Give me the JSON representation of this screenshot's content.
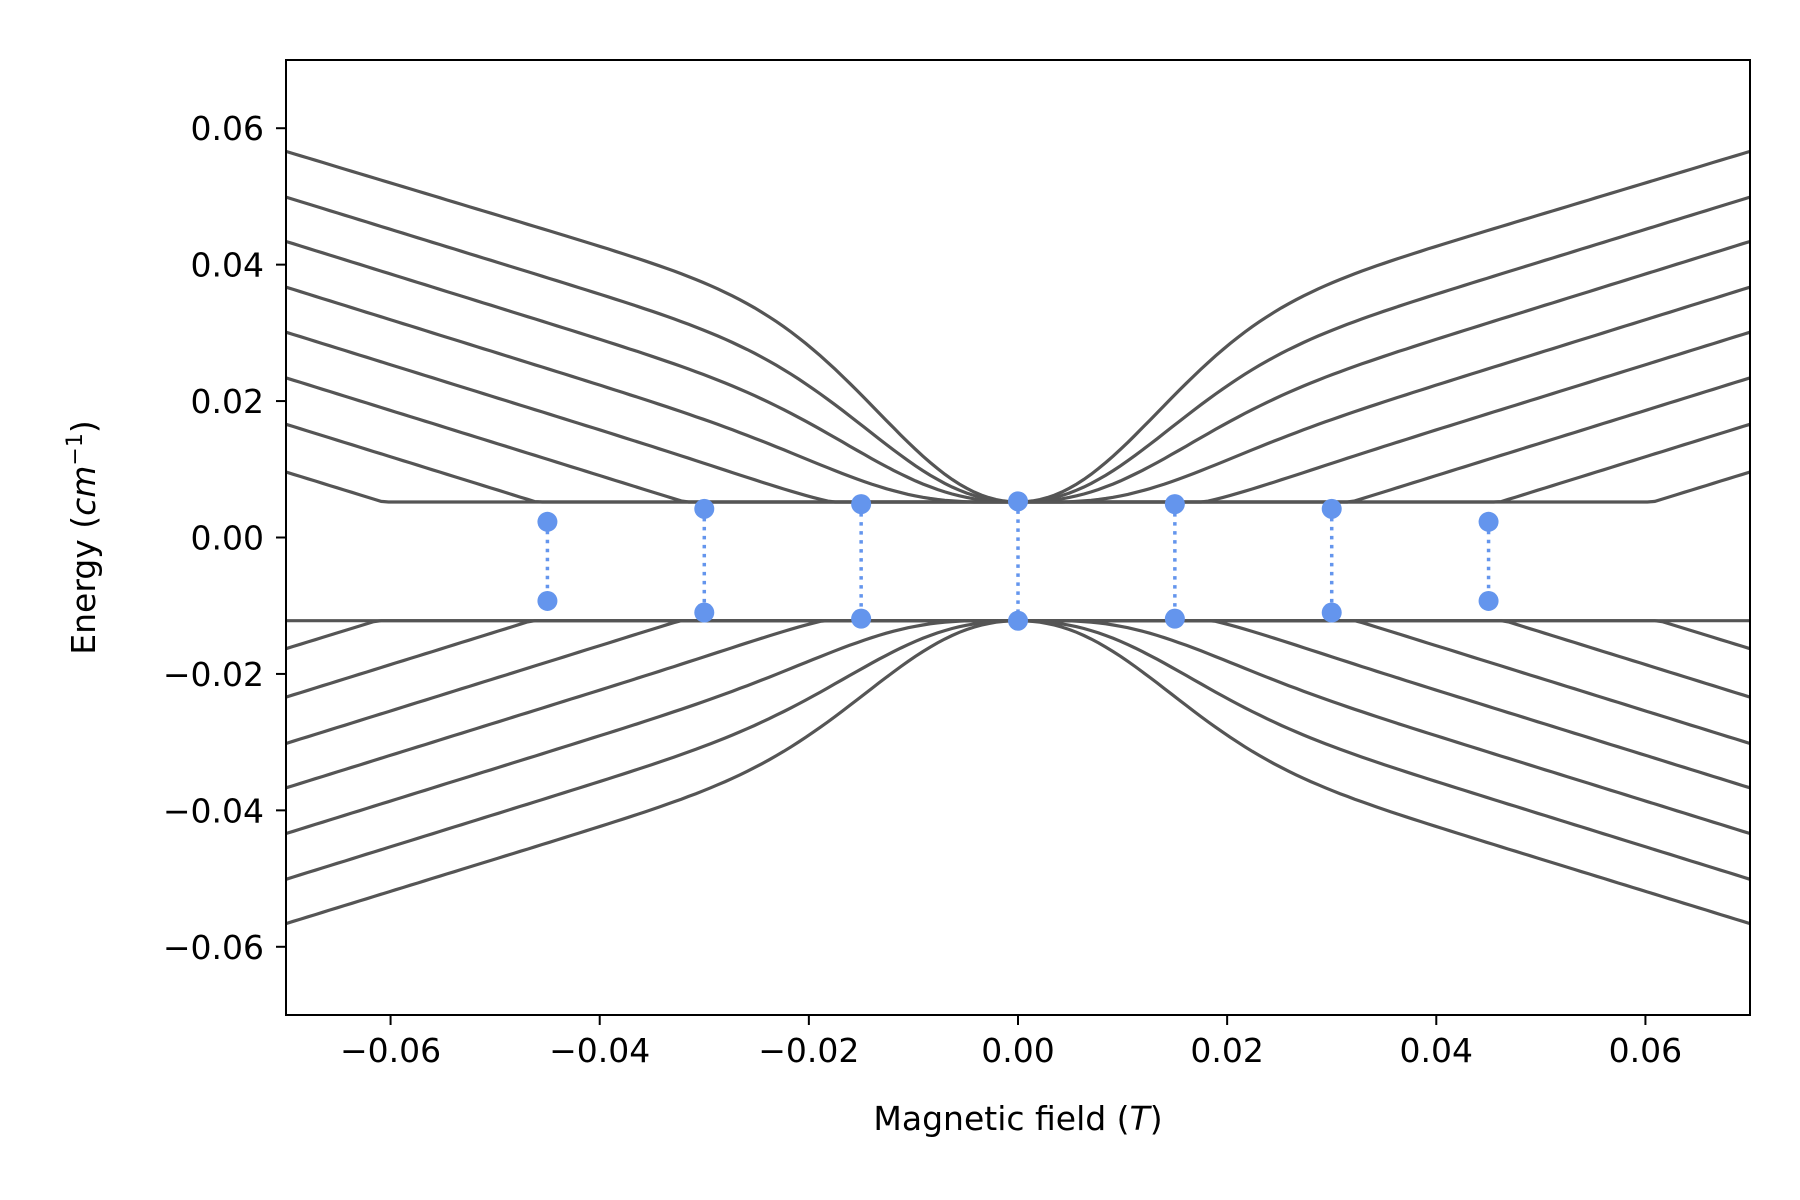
{
  "chart_data": {
    "type": "line",
    "title": "",
    "xlabel_text": "Magnetic field (",
    "xlabel_unit": "T",
    "xlabel_close": ")",
    "ylabel_text": "Energy (",
    "ylabel_unit": "cm",
    "ylabel_exp": "−1",
    "ylabel_close": ")",
    "xlim": [
      -0.07,
      0.07
    ],
    "ylim": [
      -0.07,
      0.07
    ],
    "xticks": [
      -0.06,
      -0.04,
      -0.02,
      0.0,
      0.02,
      0.04,
      0.06
    ],
    "xtick_labels": [
      "−0.06",
      "−0.04",
      "−0.02",
      "0.00",
      "0.02",
      "0.04",
      "0.06"
    ],
    "yticks": [
      -0.06,
      -0.04,
      -0.02,
      0.0,
      0.02,
      0.04,
      0.06
    ],
    "ytick_labels": [
      "−0.06",
      "−0.04",
      "−0.02",
      "0.00",
      "0.02",
      "0.04",
      "0.06"
    ],
    "grid": false,
    "line_color": "#555555",
    "marker_color": "#6495ed",
    "levels": {
      "upper_branch": [
        {
          "m": 7.5,
          "u": 0.0566,
          "d": -0.0081,
          "c": 0.0052
        },
        {
          "m": 6.5,
          "u": 0.0499,
          "d": -0.0163,
          "c": 0.0052
        },
        {
          "m": 5.5,
          "u": 0.0434,
          "d": -0.0234,
          "c": 0.0052
        },
        {
          "m": 4.5,
          "u": 0.0367,
          "d": -0.0302,
          "c": 0.0052
        },
        {
          "m": 3.5,
          "u": 0.0301,
          "d": -0.0367,
          "c": 0.0052
        },
        {
          "m": 2.5,
          "u": 0.0234,
          "d": -0.0434,
          "c": 0.0052
        },
        {
          "m": 1.5,
          "u": 0.0166,
          "d": -0.0501,
          "c": 0.0052
        },
        {
          "m": 0.5,
          "u": 0.0096,
          "d": -0.0566,
          "c": 0.0052
        }
      ],
      "lower_branch": [
        {
          "m": 7.5,
          "u": 0.0566,
          "d": -0.0081,
          "c": -0.0122
        },
        {
          "m": 6.5,
          "u": 0.0499,
          "d": -0.0163,
          "c": -0.0122
        },
        {
          "m": 5.5,
          "u": 0.0434,
          "d": -0.0234,
          "c": -0.0122
        },
        {
          "m": 4.5,
          "u": 0.0367,
          "d": -0.0302,
          "c": -0.0122
        },
        {
          "m": 3.5,
          "u": 0.0301,
          "d": -0.0367,
          "c": -0.0122
        },
        {
          "m": 2.5,
          "u": 0.0234,
          "d": -0.0434,
          "c": -0.0122
        },
        {
          "m": 1.5,
          "u": 0.0166,
          "d": -0.0501,
          "c": -0.0122
        },
        {
          "m": 0.5,
          "u": 0.0096,
          "d": -0.0566,
          "c": -0.0122
        }
      ]
    },
    "transitions": [
      {
        "x": -0.045,
        "y_upper": 0.0023,
        "y_lower": -0.0093
      },
      {
        "x": -0.03,
        "y_upper": 0.0042,
        "y_lower": -0.011
      },
      {
        "x": -0.015,
        "y_upper": 0.0049,
        "y_lower": -0.0119
      },
      {
        "x": 0.0,
        "y_upper": 0.0053,
        "y_lower": -0.0122
      },
      {
        "x": 0.015,
        "y_upper": 0.0049,
        "y_lower": -0.0119
      },
      {
        "x": 0.03,
        "y_upper": 0.0042,
        "y_lower": -0.011
      },
      {
        "x": 0.045,
        "y_upper": 0.0023,
        "y_lower": -0.0093
      }
    ]
  }
}
